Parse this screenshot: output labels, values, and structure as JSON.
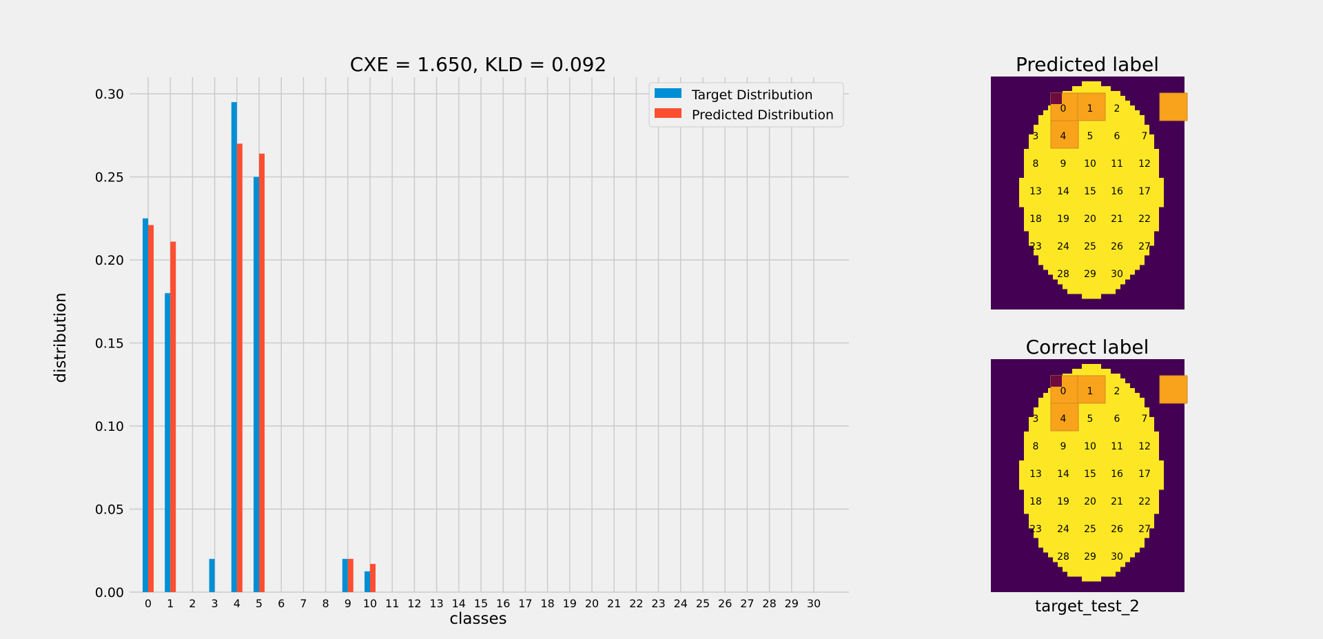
{
  "chart_data": [
    {
      "type": "bar",
      "title": "CXE = 1.650, KLD = 0.092",
      "xlabel": "classes",
      "ylabel": "distribution",
      "ylim": [
        0,
        0.31
      ],
      "yticks": [
        "0.00",
        "0.05",
        "0.10",
        "0.15",
        "0.20",
        "0.25",
        "0.30"
      ],
      "grid": true,
      "legend_position": "top-right",
      "categories": [
        "0",
        "1",
        "2",
        "3",
        "4",
        "5",
        "6",
        "7",
        "8",
        "9",
        "10",
        "11",
        "12",
        "13",
        "14",
        "15",
        "16",
        "17",
        "18",
        "19",
        "20",
        "21",
        "22",
        "23",
        "24",
        "25",
        "26",
        "27",
        "28",
        "29",
        "30"
      ],
      "series": [
        {
          "name": "Target Distribution",
          "color": "#008fd5",
          "values": [
            0.225,
            0.18,
            0,
            0.02,
            0.295,
            0.25,
            0,
            0,
            0,
            0.02,
            0.0125,
            0,
            0,
            0,
            0,
            0,
            0,
            0,
            0,
            0,
            0,
            0,
            0,
            0,
            0,
            0,
            0,
            0,
            0,
            0,
            0
          ]
        },
        {
          "name": "Predicted Distribution",
          "color": "#fc4f30",
          "values": [
            0.221,
            0.211,
            0,
            0,
            0.27,
            0.264,
            0,
            0,
            0,
            0.02,
            0.017,
            0,
            0,
            0,
            0,
            0,
            0,
            0,
            0,
            0,
            0,
            0,
            0,
            0,
            0,
            0,
            0,
            0,
            0,
            0,
            0
          ]
        }
      ]
    },
    {
      "type": "heatmap",
      "title": "Predicted label",
      "cell_labels": [
        "0",
        "1",
        "2",
        "3",
        "4",
        "5",
        "6",
        "7",
        "8",
        "9",
        "10",
        "11",
        "12",
        "13",
        "14",
        "15",
        "16",
        "17",
        "18",
        "19",
        "20",
        "21",
        "22",
        "23",
        "24",
        "25",
        "26",
        "27",
        "28",
        "29",
        "30"
      ],
      "highlighted_cells": [
        "0",
        "1",
        "4",
        "5"
      ]
    },
    {
      "type": "heatmap",
      "title": "Correct label",
      "caption": "target_test_2",
      "cell_labels": [
        "0",
        "1",
        "2",
        "3",
        "4",
        "5",
        "6",
        "7",
        "8",
        "9",
        "10",
        "11",
        "12",
        "13",
        "14",
        "15",
        "16",
        "17",
        "18",
        "19",
        "20",
        "21",
        "22",
        "23",
        "24",
        "25",
        "26",
        "27",
        "28",
        "29",
        "30"
      ],
      "highlighted_cells": [
        "0",
        "1",
        "4",
        "5"
      ]
    }
  ],
  "colors": {
    "background": "#f0f0f0",
    "grid": "#cbcbcb",
    "mask_background": "#440154",
    "mask_fill": "#fde725",
    "highlight": "#f9a21c",
    "highlight_corner": "#6d0a3f"
  }
}
